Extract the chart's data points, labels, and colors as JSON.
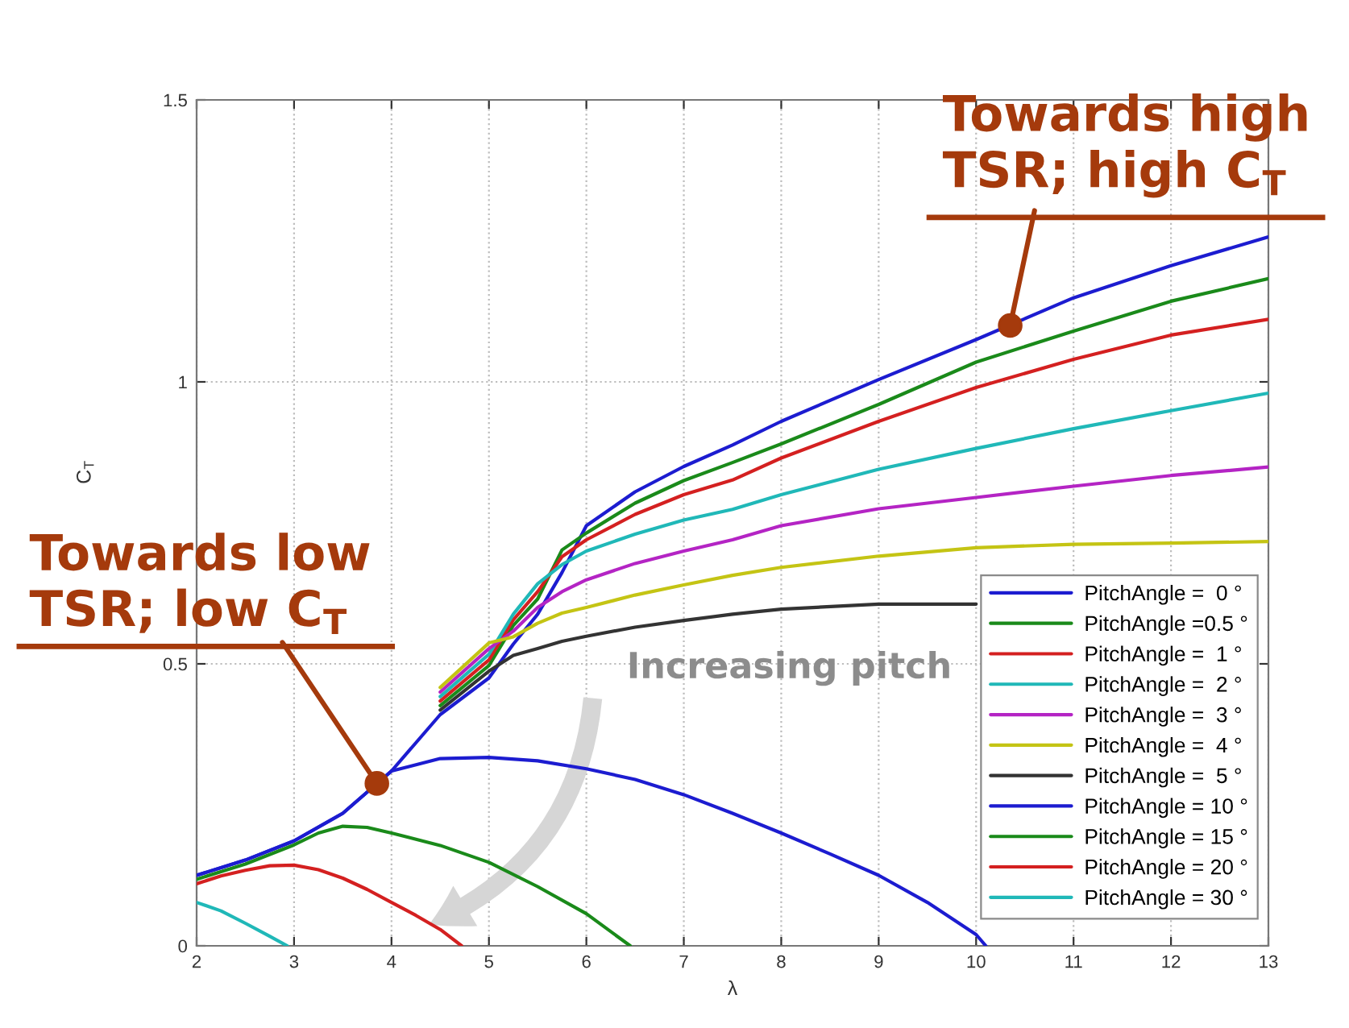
{
  "chart_data": {
    "type": "line",
    "xlabel": "λ",
    "ylabel": "C$_{T}$",
    "xlim": [
      2,
      13
    ],
    "ylim": [
      0,
      1.5
    ],
    "xticks": [
      2,
      3,
      4,
      5,
      6,
      7,
      8,
      9,
      10,
      11,
      12,
      13
    ],
    "yticks": [
      0,
      0.5,
      1,
      1.5
    ],
    "grid": true,
    "legend": "bottom right",
    "line_style": "solid",
    "series": [
      {
        "name": "PitchAngle =  0 °",
        "color": "#1c1cd0",
        "x": [
          2,
          2.5,
          3,
          3.5,
          4,
          4.5,
          5,
          5.25,
          5.5,
          5.75,
          6,
          6.5,
          7,
          7.5,
          8,
          9,
          10,
          11,
          12,
          13
        ],
        "values": [
          0.125,
          0.152,
          0.186,
          0.235,
          0.31,
          0.41,
          0.475,
          0.535,
          0.588,
          0.662,
          0.745,
          0.805,
          0.85,
          0.888,
          0.93,
          1.004,
          1.075,
          1.149,
          1.206,
          1.257
        ]
      },
      {
        "name": "PitchAngle =0.5 °",
        "color": "#1a8a1a",
        "x": [
          4.5,
          5,
          5.25,
          5.5,
          5.75,
          6,
          6.5,
          7,
          7.5,
          8,
          9,
          10,
          11,
          12,
          13
        ],
        "values": [
          0.426,
          0.497,
          0.568,
          0.615,
          0.702,
          0.732,
          0.785,
          0.825,
          0.857,
          0.89,
          0.96,
          1.035,
          1.09,
          1.143,
          1.183
        ]
      },
      {
        "name": "PitchAngle =  1 °",
        "color": "#d42020",
        "x": [
          4.5,
          5,
          5.25,
          5.5,
          5.75,
          6,
          6.5,
          7,
          7.5,
          8,
          9,
          10,
          11,
          12,
          13
        ],
        "values": [
          0.434,
          0.507,
          0.578,
          0.628,
          0.69,
          0.72,
          0.765,
          0.8,
          0.826,
          0.865,
          0.93,
          0.99,
          1.04,
          1.083,
          1.111
        ]
      },
      {
        "name": "PitchAngle =  2 °",
        "color": "#20b8b8",
        "x": [
          4.5,
          5,
          5.25,
          5.5,
          5.75,
          6,
          6.5,
          7,
          7.5,
          8,
          9,
          10,
          11,
          12,
          13
        ],
        "values": [
          0.442,
          0.517,
          0.588,
          0.642,
          0.676,
          0.7,
          0.73,
          0.755,
          0.774,
          0.8,
          0.845,
          0.882,
          0.917,
          0.949,
          0.98
        ]
      },
      {
        "name": "PitchAngle =  3 °",
        "color": "#b424c4",
        "x": [
          4.5,
          5,
          5.25,
          5.5,
          5.75,
          6,
          6.5,
          7,
          7.5,
          8,
          9,
          10,
          11,
          12,
          13
        ],
        "values": [
          0.45,
          0.527,
          0.558,
          0.6,
          0.628,
          0.649,
          0.678,
          0.7,
          0.72,
          0.745,
          0.775,
          0.795,
          0.815,
          0.834,
          0.849
        ]
      },
      {
        "name": "PitchAngle =  4 °",
        "color": "#c4c414",
        "x": [
          4.5,
          5,
          5.25,
          5.5,
          5.75,
          6,
          6.5,
          7,
          7.5,
          8,
          9,
          10,
          11,
          12,
          13
        ],
        "values": [
          0.458,
          0.537,
          0.548,
          0.572,
          0.59,
          0.6,
          0.622,
          0.64,
          0.657,
          0.671,
          0.691,
          0.706,
          0.712,
          0.714,
          0.717
        ]
      },
      {
        "name": "PitchAngle =  5 °",
        "color": "#333333",
        "x": [
          4.5,
          5,
          5.25,
          5.5,
          5.75,
          6,
          6.5,
          7,
          7.5,
          8,
          9,
          10
        ],
        "values": [
          0.418,
          0.487,
          0.515,
          0.527,
          0.54,
          0.549,
          0.565,
          0.577,
          0.588,
          0.597,
          0.606,
          0.606
        ]
      },
      {
        "name": "PitchAngle = 10 °",
        "color": "#1c1cd0",
        "x": [
          2,
          2.5,
          3,
          3.5,
          4,
          4.5,
          5,
          5.5,
          6,
          6.5,
          7,
          7.5,
          8,
          8.5,
          9,
          9.5,
          10,
          10.1
        ],
        "values": [
          0.125,
          0.152,
          0.186,
          0.235,
          0.31,
          0.332,
          0.334,
          0.328,
          0.314,
          0.295,
          0.268,
          0.235,
          0.2,
          0.163,
          0.125,
          0.077,
          0.02,
          0
        ]
      },
      {
        "name": "PitchAngle = 15 °",
        "color": "#1a8a1a",
        "x": [
          2,
          2.5,
          3,
          3.25,
          3.5,
          3.75,
          4,
          4.5,
          5,
          5.5,
          6,
          6.45
        ],
        "values": [
          0.118,
          0.145,
          0.179,
          0.2,
          0.212,
          0.21,
          0.2,
          0.178,
          0.148,
          0.105,
          0.057,
          0
        ]
      },
      {
        "name": "PitchAngle = 20 °",
        "color": "#d42020",
        "x": [
          2,
          2.25,
          2.5,
          2.75,
          3,
          3.25,
          3.5,
          3.75,
          4,
          4.25,
          4.5,
          4.72
        ],
        "values": [
          0.11,
          0.124,
          0.134,
          0.142,
          0.143,
          0.135,
          0.12,
          0.1,
          0.077,
          0.054,
          0.029,
          0
        ]
      },
      {
        "name": "PitchAngle = 30 °",
        "color": "#20b8b8",
        "x": [
          2,
          2.25,
          2.5,
          2.75,
          2.93
        ],
        "values": [
          0.077,
          0.062,
          0.04,
          0.017,
          0
        ]
      }
    ],
    "annotations": [
      {
        "text": "Towards high\nTSR; high C$_{T}$",
        "x": 10.35,
        "y": 1.1
      },
      {
        "text": "Towards low\nTSR; low C$_{T}$",
        "x": 3.85,
        "y": 0.288
      },
      "Increasing pitch"
    ]
  }
}
